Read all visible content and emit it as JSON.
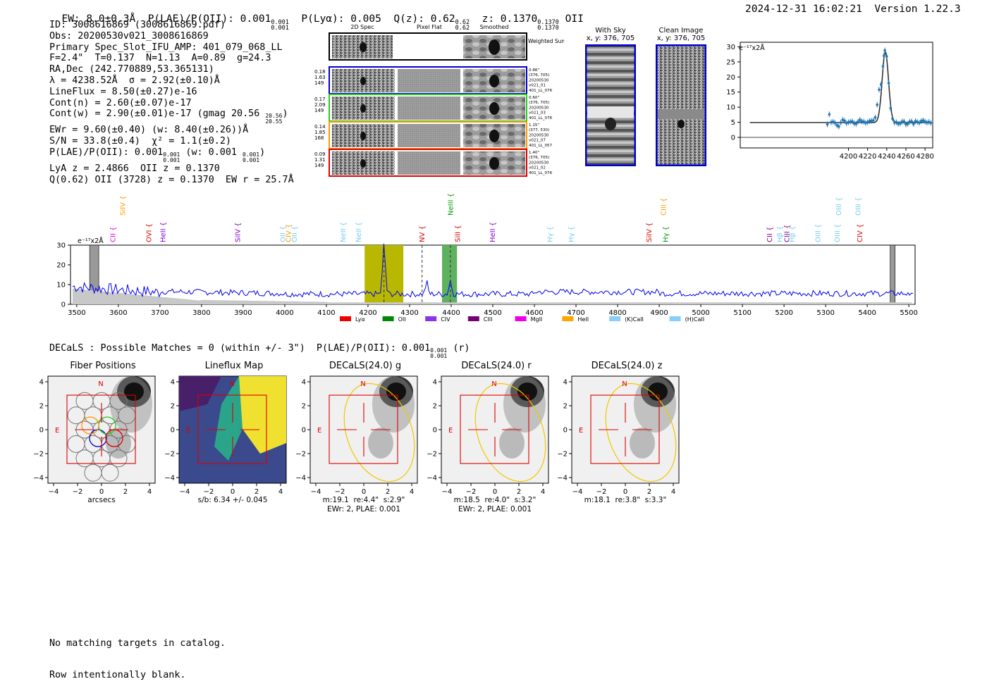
{
  "header": {
    "ew": "EW: 8.0±0.3Å",
    "plae_label": "P(LAE)/P(OII): 0.001",
    "plae_sup": "0.001",
    "plae_sub": "0.001",
    "plya": "P(Lyα): 0.005",
    "qz_label": "Q(z): 0.62",
    "qz_sup": "0.62",
    "qz_sub": "0.62",
    "z_label": "z: 0.1370",
    "z_sup": "0.1370",
    "z_sub": "0.1370",
    "line_name": "OII",
    "timestamp": "2024-12-31 16:02:21",
    "version": "Version 1.22.3"
  },
  "info": {
    "id": "ID: 3008616869 (3008616869.pdf)",
    "obs": "Obs: 20200530v021_3008616869",
    "primary": "Primary Spec_Slot_IFU_AMP: 401_079_068_LL",
    "fit": "F=2.4\"  T=0.137  N=1.13  A=0.89  g=24.3",
    "radec": "RA,Dec (242.770889,53.365131)",
    "lambda": "λ = 4238.52Å  σ = 2.92(±0.10)Å",
    "lineflux": "LineFlux = 8.50(±0.27)e-16",
    "contn": "Cont(n) = 2.60(±0.07)e-17",
    "contw": "Cont(w) = 2.90(±0.01)e-17 (gmag 20.56",
    "contw_sup": "20.56",
    "contw_sub": "20.55",
    "ewr": "EWr = 9.60(±0.40) (w: 8.40(±0.26))Å",
    "sn": "S/N = 33.8(±0.4)  χ² = 1.1(±0.2)",
    "plae": "P(LAE)/P(OII): 0.001",
    "plae_w": "(w: 0.001",
    "lya_z": "LyA z = 2.4866  OII z = 0.1370",
    "q_line": "Q(0.62) OII (3728) z = 0.1370  EW r = 25.7Å"
  },
  "cutouts": {
    "col_titles": [
      "2D Spec",
      "Pixel Flat",
      "Smoothed"
    ],
    "weighted_label": "Weighted Sum",
    "rows": [
      {
        "left": [
          "0.18",
          "1.63",
          "149"
        ],
        "right": [
          "0.86\"",
          "(376, 705)",
          "20200530",
          "v021_01",
          "401_LL_076"
        ],
        "color": "#0000cc"
      },
      {
        "left": [
          "0.17",
          "2.09",
          "149"
        ],
        "right": [
          "0.60\"",
          "(376, 705)",
          "20200530",
          "v021_03",
          "401_LL_076"
        ],
        "color": "#22cc22"
      },
      {
        "left": [
          "0.14",
          "1.85",
          "168"
        ],
        "right": [
          "1.15\"",
          "(377, 530)",
          "20200530",
          "v021_07",
          "401_LL_057"
        ],
        "color": "#ff9900"
      },
      {
        "left": [
          "0.09",
          "1.31",
          "149"
        ],
        "right": [
          "1.40\"",
          "(376, 705)",
          "20200530",
          "v021_02",
          "401_LL_076"
        ],
        "color": "#dd0000"
      }
    ]
  },
  "sky": {
    "with_sky_title": "With Sky",
    "with_sky_xy": "x, y: 376, 705",
    "clean_title": "Clean Image",
    "clean_xy": "x, y: 376, 705"
  },
  "zoom_plot": {
    "unit_label": "e⁻¹⁷x2Å",
    "x_ticks": [
      "4200",
      "4220",
      "4240",
      "4260",
      "4280"
    ],
    "y_ticks": [
      "0",
      "5",
      "10",
      "15",
      "20",
      "25",
      "30"
    ]
  },
  "spectrum": {
    "unit_label": "e⁻¹⁷x2Å",
    "x_ticks": [
      "3500",
      "3600",
      "3700",
      "3800",
      "3900",
      "4000",
      "4100",
      "4200",
      "4300",
      "4400",
      "4500",
      "4600",
      "4700",
      "4800",
      "4900",
      "5000",
      "5100",
      "5200",
      "5300",
      "5400",
      "5500"
    ],
    "y_ticks": [
      "0",
      "10",
      "20",
      "30"
    ],
    "line_labels": [
      {
        "name": "CII",
        "wave": 3587,
        "color": "#dd00dd",
        "row": 2
      },
      {
        "name": "SiIV",
        "wave": 3610,
        "color": "#ff9900",
        "row": 0
      },
      {
        "name": "OVI",
        "wave": 3673,
        "color": "#dd0000",
        "row": 1
      },
      {
        "name": "HeII",
        "wave": 3707,
        "color": "#8800cc",
        "row": 1
      },
      {
        "name": "SiIV",
        "wave": 3887,
        "color": "#8800cc",
        "row": 1
      },
      {
        "name": "OII",
        "wave": 3995,
        "color": "#77ccee",
        "row": 1
      },
      {
        "name": "CIV",
        "wave": 4009,
        "color": "#ff9900",
        "row": 1
      },
      {
        "name": "OII",
        "wave": 4023,
        "color": "#77ccee",
        "row": 1
      },
      {
        "name": "NeII",
        "wave": 4140,
        "color": "#77ccee",
        "row": 1
      },
      {
        "name": "NeII",
        "wave": 4177,
        "color": "#77ccee",
        "row": 1
      },
      {
        "name": "NV",
        "wave": 4330,
        "color": "#dd0000",
        "row": 1
      },
      {
        "name": "NeIII",
        "wave": 4398,
        "color": "#009900",
        "row": 0
      },
      {
        "name": "SiII",
        "wave": 4415,
        "color": "#dd0000",
        "row": 1
      },
      {
        "name": "HeII",
        "wave": 4499,
        "color": "#8800cc",
        "row": 1
      },
      {
        "name": "Hγ",
        "wave": 4637,
        "color": "#77ccee",
        "row": 1
      },
      {
        "name": "Hγ",
        "wave": 4688,
        "color": "#77ccee",
        "row": 1
      },
      {
        "name": "SiIV",
        "wave": 4875,
        "color": "#dd0000",
        "row": 1
      },
      {
        "name": "CIII",
        "wave": 4910,
        "color": "#ff9900",
        "row": 0
      },
      {
        "name": "Hγ",
        "wave": 4915,
        "color": "#009900",
        "row": 1
      },
      {
        "name": "CII",
        "wave": 5165,
        "color": "#880088",
        "row": 1
      },
      {
        "name": "Hβ",
        "wave": 5190,
        "color": "#77ccee",
        "row": 1
      },
      {
        "name": "CIII",
        "wave": 5207,
        "color": "#880088",
        "row": 1
      },
      {
        "name": "Hβ",
        "wave": 5219,
        "color": "#77ccee",
        "row": 1
      },
      {
        "name": "OIII",
        "wave": 5281,
        "color": "#77ccee",
        "row": 1
      },
      {
        "name": "OIII",
        "wave": 5331,
        "color": "#77ccee",
        "row": 0
      },
      {
        "name": "OIII",
        "wave": 5328,
        "color": "#77ccee",
        "row": 1
      },
      {
        "name": "OIII",
        "wave": 5378,
        "color": "#77ccee",
        "row": 0
      },
      {
        "name": "CIV",
        "wave": 5382,
        "color": "#dd0000",
        "row": 1
      }
    ],
    "legend": [
      {
        "name": "Lyα",
        "color": "#ee0000"
      },
      {
        "name": "OII",
        "color": "#008800"
      },
      {
        "name": "CIV",
        "color": "#8833ee"
      },
      {
        "name": "CIII",
        "color": "#770077"
      },
      {
        "name": "MgII",
        "color": "#ee00ee"
      },
      {
        "name": "HeII",
        "color": "#ffa500"
      },
      {
        "name": "(K)CaII",
        "color": "#87cefa"
      },
      {
        "name": "(H)CaII",
        "color": "#87cefa"
      }
    ]
  },
  "decals": {
    "summary": "DECaLS : Possible Matches = 0 (within +/- 3\")  P(LAE)/P(OII): 0.001",
    "summary_sup": "0.001",
    "summary_sub": "0.001",
    "summary_band": "(r)",
    "panels": [
      {
        "title": "Fiber Positions",
        "cap1": "arcsecs",
        "cap2": ""
      },
      {
        "title": "Lineflux Map",
        "cap1": "s/b: 6.34 +/- 0.045",
        "cap2": ""
      },
      {
        "title": "DECaLS(24.0) g",
        "cap1": "m:19.1  re:4.4\"  s:2.9\"",
        "cap2": "EWr: 2, PLAE: 0.001"
      },
      {
        "title": "DECaLS(24.0) r",
        "cap1": "m:18.5  re:4.0\"  s:3.2\"",
        "cap2": "EWr: 2, PLAE: 0.001"
      },
      {
        "title": "DECaLS(24.0) z",
        "cap1": "m:18.1  re:3.8\"  s:3.3\"",
        "cap2": ""
      }
    ],
    "ticks": [
      "−4",
      "−2",
      "0",
      "2",
      "4"
    ],
    "north": "N",
    "east": "E"
  },
  "footer": {
    "line1": "No matching targets in catalog.",
    "line2": "Row intentionally blank."
  }
}
